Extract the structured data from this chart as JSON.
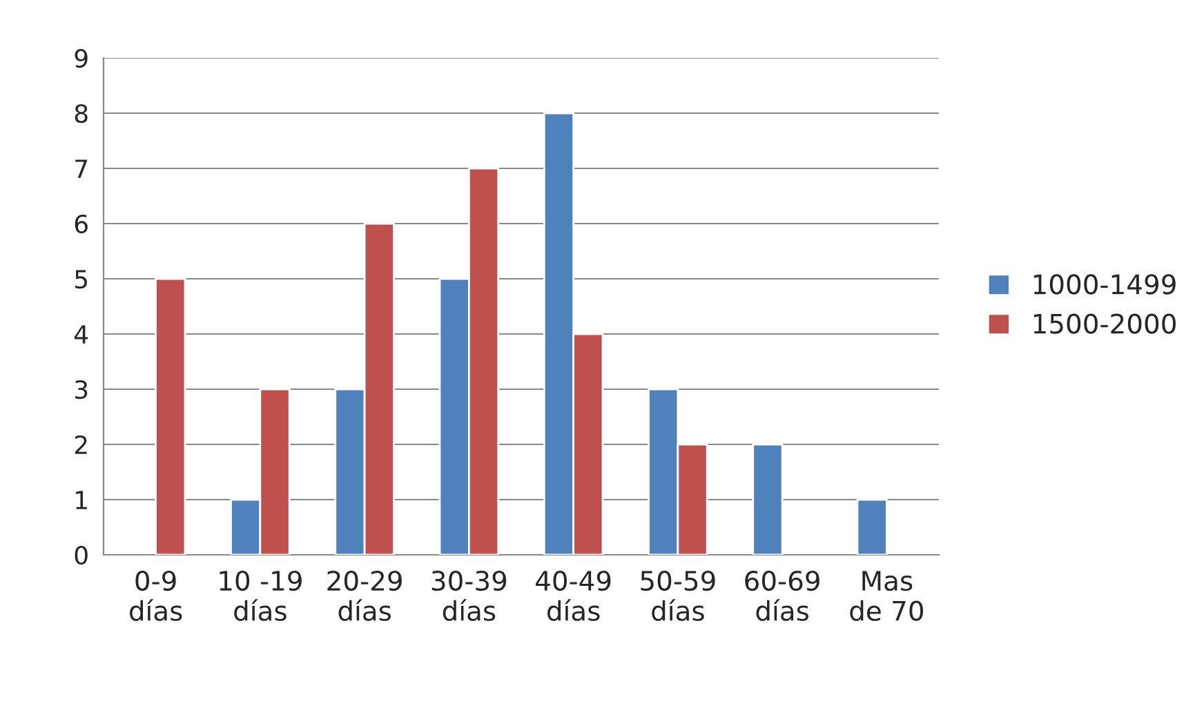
{
  "chart_data": {
    "type": "bar",
    "categories": [
      "0-9\ndías",
      "10 -19\ndías",
      "20-29\ndías",
      "30-39\ndías",
      "40-49\ndías",
      "50-59\ndías",
      "60-69\ndías",
      "Mas\nde 70"
    ],
    "series": [
      {
        "name": "1000-1499",
        "color": "#4f81bd",
        "values": [
          null,
          1,
          3,
          5,
          8,
          3,
          2,
          1
        ]
      },
      {
        "name": "1500-2000",
        "color": "#c0504d",
        "values": [
          5,
          3,
          6,
          7,
          4,
          2,
          null,
          null
        ]
      }
    ],
    "ylim": [
      0,
      9
    ],
    "yticks": [
      0,
      1,
      2,
      3,
      4,
      5,
      6,
      7,
      8,
      9
    ],
    "grid": "y",
    "legend": "right"
  }
}
